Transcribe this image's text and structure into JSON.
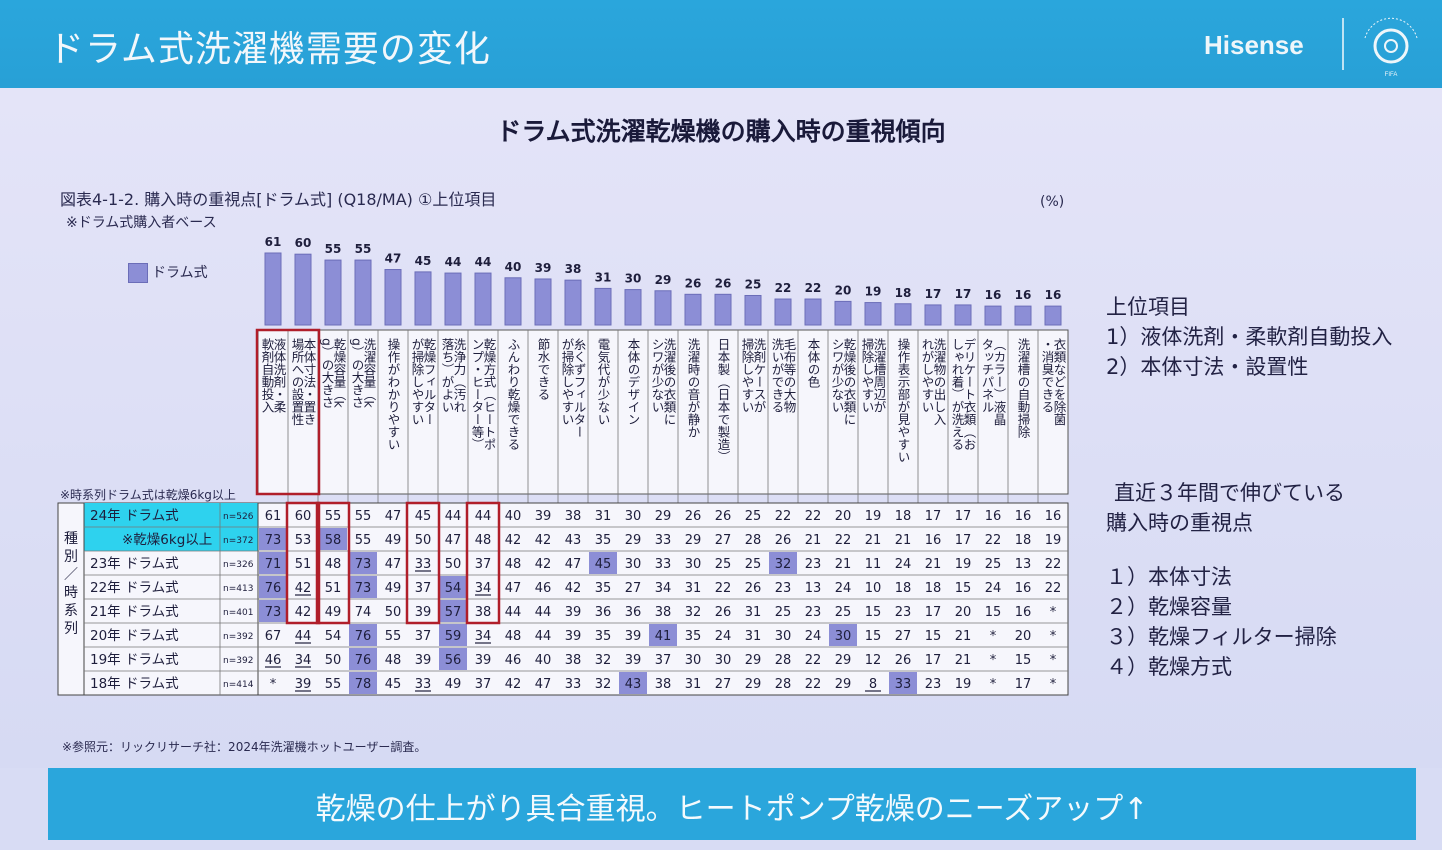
{
  "slide": {
    "title": "ドラム式洗濯機需要の変化",
    "brand": "Hisense",
    "logo_text": "CLUB WORLD CUP 25 FIFA",
    "subtitle": "ドラム式洗濯乾燥機の購入時の重視傾向",
    "footer": "乾燥の仕上がり具合重視。ヒートポンプ乾燥のニーズアップ↑"
  },
  "figure": {
    "caption": "図表4-1-2. 購入時の重視点[ドラム式] (Q18/MA) ①上位項目",
    "base_note": "※ドラム式購入者ベース",
    "unit": "(%)",
    "legend": "ドラム式",
    "note_dry": "※時系列ドラム式は乾燥6kg以上",
    "group_label": "種別／時系列",
    "reference": "※参照元：リックリサーチ社：2024年洗濯機ホットユーザー調査。"
  },
  "colors": {
    "bar": "#8c8ed6",
    "highlight_cell": "#8c8ed6",
    "box": "#b01e2a",
    "row_highlight": "#2ed2ee"
  },
  "chart_data": {
    "type": "bar",
    "categories": [
      "液体洗剤・柔軟剤自動投入",
      "本体寸法・置き場所への設置性",
      "乾燥容量（kg）の大きさ",
      "洗濯容量（kg）の大きさ",
      "操作がわかりやすい",
      "乾燥フィルターが掃除しやすい",
      "洗浄力（汚れ落ち）がよい",
      "乾燥方式（ヒートポンプ・ヒーター等）",
      "ふんわり乾燥できる",
      "節水できる",
      "糸くずフィルターが掃除しやすい",
      "電気代が少ない",
      "本体のデザイン",
      "洗濯後の衣類にシワが少ない",
      "洗濯時の音が静か",
      "日本製（日本で製造）",
      "洗剤ケースが掃除しやすい",
      "毛布等の大物洗いができる",
      "本体の色",
      "乾燥後の衣類にシワが少ない",
      "洗濯槽周辺が掃除しやすい",
      "操作表示部が見やすい",
      "洗濯物の出し入れがしやすい",
      "デリケート衣類（おしゃれ着）が洗える",
      "（カラー）液晶タッチパネル",
      "洗濯槽の自動掃除",
      "衣類などを除菌・消臭できる"
    ],
    "values": [
      61,
      60,
      55,
      55,
      47,
      45,
      44,
      44,
      40,
      39,
      38,
      31,
      30,
      29,
      26,
      26,
      25,
      22,
      22,
      20,
      19,
      18,
      17,
      17,
      16,
      16,
      16
    ],
    "series": [
      {
        "name": "ドラム式",
        "values": [
          61,
          60,
          55,
          55,
          47,
          45,
          44,
          44,
          40,
          39,
          38,
          31,
          30,
          29,
          26,
          26,
          25,
          22,
          22,
          20,
          19,
          18,
          17,
          17,
          16,
          16,
          16
        ]
      }
    ],
    "table": {
      "rows": [
        {
          "label": "24年 ドラム式",
          "n": "n=526",
          "values": [
            "61",
            "60",
            "55",
            "55",
            "47",
            "45",
            "44",
            "44",
            "40",
            "39",
            "38",
            "31",
            "30",
            "29",
            "26",
            "26",
            "25",
            "22",
            "22",
            "20",
            "19",
            "18",
            "17",
            "17",
            "16",
            "16",
            "16"
          ],
          "shaded": [],
          "underlined": []
        },
        {
          "label": "※乾燥6kg以上",
          "n": "n=372",
          "values": [
            "73",
            "53",
            "58",
            "55",
            "49",
            "50",
            "47",
            "48",
            "42",
            "42",
            "43",
            "35",
            "29",
            "33",
            "29",
            "27",
            "28",
            "26",
            "21",
            "22",
            "21",
            "21",
            "16",
            "17",
            "22",
            "18",
            "19"
          ],
          "shaded": [
            0,
            2
          ],
          "underlined": []
        },
        {
          "label": "23年 ドラム式",
          "n": "n=326",
          "values": [
            "71",
            "51",
            "48",
            "73",
            "47",
            "33",
            "50",
            "37",
            "48",
            "42",
            "47",
            "45",
            "30",
            "33",
            "30",
            "25",
            "25",
            "32",
            "23",
            "21",
            "11",
            "24",
            "21",
            "19",
            "25",
            "13",
            "22"
          ],
          "shaded": [
            0,
            3,
            11,
            17
          ],
          "underlined": [
            5
          ]
        },
        {
          "label": "22年 ドラム式",
          "n": "n=413",
          "values": [
            "76",
            "42",
            "51",
            "73",
            "49",
            "37",
            "54",
            "34",
            "47",
            "46",
            "42",
            "35",
            "27",
            "34",
            "31",
            "22",
            "26",
            "23",
            "13",
            "24",
            "10",
            "18",
            "18",
            "15",
            "24",
            "16",
            "22"
          ],
          "shaded": [
            0,
            3,
            6
          ],
          "underlined": [
            1,
            7
          ]
        },
        {
          "label": "21年 ドラム式",
          "n": "n=401",
          "values": [
            "73",
            "42",
            "49",
            "74",
            "50",
            "39",
            "57",
            "38",
            "44",
            "44",
            "39",
            "36",
            "36",
            "38",
            "32",
            "26",
            "31",
            "25",
            "23",
            "25",
            "15",
            "23",
            "17",
            "20",
            "15",
            "16",
            "*"
          ],
          "shaded": [
            0,
            6
          ],
          "underlined": []
        },
        {
          "label": "20年 ドラム式",
          "n": "n=392",
          "values": [
            "67",
            "44",
            "54",
            "76",
            "55",
            "37",
            "59",
            "34",
            "48",
            "44",
            "39",
            "35",
            "39",
            "41",
            "35",
            "24",
            "31",
            "30",
            "24",
            "30",
            "15",
            "27",
            "15",
            "21",
            "*",
            "20",
            "*"
          ],
          "shaded": [
            3,
            6,
            13,
            19
          ],
          "underlined": [
            1,
            7
          ]
        },
        {
          "label": "19年 ドラム式",
          "n": "n=392",
          "values": [
            "46",
            "34",
            "50",
            "76",
            "48",
            "39",
            "56",
            "39",
            "46",
            "40",
            "38",
            "32",
            "39",
            "37",
            "30",
            "30",
            "29",
            "28",
            "22",
            "29",
            "12",
            "26",
            "17",
            "21",
            "*",
            "15",
            "*"
          ],
          "shaded": [
            3,
            6
          ],
          "underlined": [
            0,
            1
          ]
        },
        {
          "label": "18年 ドラム式",
          "n": "n=414",
          "values": [
            "*",
            "39",
            "55",
            "78",
            "45",
            "33",
            "49",
            "37",
            "42",
            "47",
            "33",
            "32",
            "43",
            "38",
            "31",
            "27",
            "29",
            "28",
            "22",
            "29",
            "8",
            "33",
            "23",
            "19",
            "*",
            "17",
            "*"
          ],
          "shaded": [
            3,
            12,
            21
          ],
          "underlined": [
            1,
            5,
            20
          ]
        }
      ]
    },
    "ylim": [
      0,
      100
    ]
  },
  "side_notes": {
    "top_heading": "上位項目",
    "top_items": [
      "1）液体洗剤・柔軟剤自動投入",
      "2）本体寸法・設置性"
    ],
    "growth_heading_1": "直近３年間で伸びている",
    "growth_heading_2": "購入時の重視点",
    "growth_items": [
      "１）本体寸法",
      "２）乾燥容量",
      "３）乾燥フィルター掃除",
      "４）乾燥方式"
    ]
  }
}
